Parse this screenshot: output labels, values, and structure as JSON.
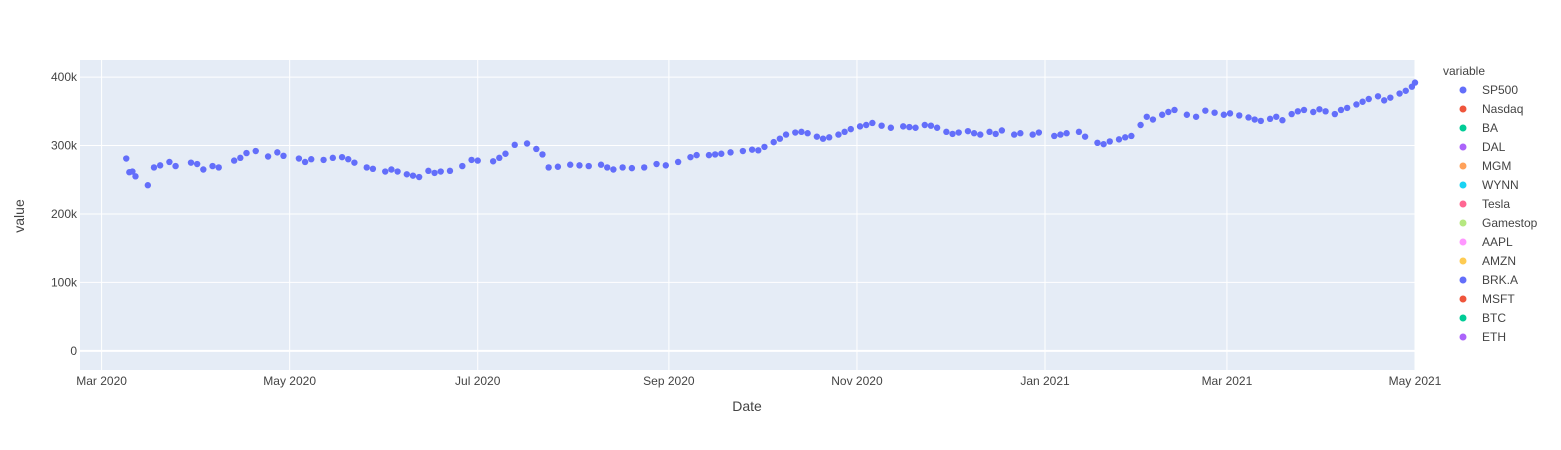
{
  "chart_data": {
    "type": "scatter",
    "xlabel": "Date",
    "ylabel": "value",
    "legend_title": "variable",
    "legend_position": "right",
    "grid": true,
    "xlim": [
      "2020-02-23",
      "2021-05-01"
    ],
    "ylim": [
      -28000,
      425000
    ],
    "x_ticks": [
      {
        "date": "2020-03-01",
        "label": "Mar 2020"
      },
      {
        "date": "2020-05-01",
        "label": "May 2020"
      },
      {
        "date": "2020-07-01",
        "label": "Jul 2020"
      },
      {
        "date": "2020-09-01",
        "label": "Sep 2020"
      },
      {
        "date": "2020-11-01",
        "label": "Nov 2020"
      },
      {
        "date": "2021-01-01",
        "label": "Jan 2021"
      },
      {
        "date": "2021-03-01",
        "label": "Mar 2021"
      },
      {
        "date": "2021-05-01",
        "label": "May 2021"
      }
    ],
    "y_ticks": [
      {
        "value": 0,
        "label": "0"
      },
      {
        "value": 100000,
        "label": "100k"
      },
      {
        "value": 200000,
        "label": "200k"
      },
      {
        "value": 300000,
        "label": "300k"
      },
      {
        "value": 400000,
        "label": "400k"
      }
    ],
    "series": [
      {
        "name": "SP500",
        "color": "#636efa",
        "values": []
      },
      {
        "name": "Nasdaq",
        "color": "#EF553B",
        "values": []
      },
      {
        "name": "BA",
        "color": "#00cc96",
        "values": []
      },
      {
        "name": "DAL",
        "color": "#ab63fa",
        "values": []
      },
      {
        "name": "MGM",
        "color": "#FFA15A",
        "values": []
      },
      {
        "name": "WYNN",
        "color": "#19d3f3",
        "values": []
      },
      {
        "name": "Tesla",
        "color": "#FF6692",
        "values": []
      },
      {
        "name": "Gamestop",
        "color": "#B6E880",
        "values": []
      },
      {
        "name": "AAPL",
        "color": "#FF97FF",
        "values": []
      },
      {
        "name": "AMZN",
        "color": "#FECB52",
        "values": []
      },
      {
        "name": "BRK.A",
        "color": "#636efa",
        "values": [
          [
            "2020-03-09",
            281000
          ],
          [
            "2020-03-10",
            261000
          ],
          [
            "2020-03-11",
            262000
          ],
          [
            "2020-03-12",
            255000
          ],
          [
            "2020-03-16",
            242000
          ],
          [
            "2020-03-18",
            268000
          ],
          [
            "2020-03-20",
            271000
          ],
          [
            "2020-03-23",
            276000
          ],
          [
            "2020-03-25",
            270000
          ],
          [
            "2020-03-30",
            275000
          ],
          [
            "2020-04-01",
            273000
          ],
          [
            "2020-04-03",
            265000
          ],
          [
            "2020-04-06",
            270000
          ],
          [
            "2020-04-08",
            268000
          ],
          [
            "2020-04-13",
            278000
          ],
          [
            "2020-04-15",
            282000
          ],
          [
            "2020-04-17",
            289000
          ],
          [
            "2020-04-20",
            292000
          ],
          [
            "2020-04-24",
            284000
          ],
          [
            "2020-04-27",
            290000
          ],
          [
            "2020-04-29",
            285000
          ],
          [
            "2020-05-04",
            281000
          ],
          [
            "2020-05-06",
            276000
          ],
          [
            "2020-05-08",
            280000
          ],
          [
            "2020-05-12",
            279000
          ],
          [
            "2020-05-15",
            282000
          ],
          [
            "2020-05-18",
            283000
          ],
          [
            "2020-05-20",
            280000
          ],
          [
            "2020-05-22",
            275000
          ],
          [
            "2020-05-26",
            268000
          ],
          [
            "2020-05-28",
            266000
          ],
          [
            "2020-06-01",
            262000
          ],
          [
            "2020-06-03",
            265000
          ],
          [
            "2020-06-05",
            262000
          ],
          [
            "2020-06-08",
            258000
          ],
          [
            "2020-06-10",
            256000
          ],
          [
            "2020-06-12",
            254000
          ],
          [
            "2020-06-15",
            263000
          ],
          [
            "2020-06-17",
            260000
          ],
          [
            "2020-06-19",
            262000
          ],
          [
            "2020-06-22",
            263000
          ],
          [
            "2020-06-26",
            270000
          ],
          [
            "2020-06-29",
            279000
          ],
          [
            "2020-07-01",
            278000
          ],
          [
            "2020-07-06",
            277000
          ],
          [
            "2020-07-08",
            282000
          ],
          [
            "2020-07-10",
            288000
          ],
          [
            "2020-07-13",
            301000
          ],
          [
            "2020-07-17",
            303000
          ],
          [
            "2020-07-20",
            295000
          ],
          [
            "2020-07-22",
            287000
          ],
          [
            "2020-07-24",
            268000
          ],
          [
            "2020-07-27",
            269000
          ],
          [
            "2020-07-31",
            272000
          ],
          [
            "2020-08-03",
            271000
          ],
          [
            "2020-08-06",
            270000
          ],
          [
            "2020-08-10",
            272000
          ],
          [
            "2020-08-12",
            268000
          ],
          [
            "2020-08-14",
            265000
          ],
          [
            "2020-08-17",
            268000
          ],
          [
            "2020-08-20",
            267000
          ],
          [
            "2020-08-24",
            268000
          ],
          [
            "2020-08-28",
            273000
          ],
          [
            "2020-08-31",
            271000
          ],
          [
            "2020-09-04",
            276000
          ],
          [
            "2020-09-08",
            283000
          ],
          [
            "2020-09-10",
            286000
          ],
          [
            "2020-09-14",
            286000
          ],
          [
            "2020-09-16",
            287000
          ],
          [
            "2020-09-18",
            288000
          ],
          [
            "2020-09-21",
            290000
          ],
          [
            "2020-09-25",
            292000
          ],
          [
            "2020-09-28",
            294000
          ],
          [
            "2020-09-30",
            293000
          ],
          [
            "2020-10-02",
            298000
          ],
          [
            "2020-10-05",
            305000
          ],
          [
            "2020-10-07",
            310000
          ],
          [
            "2020-10-09",
            316000
          ],
          [
            "2020-10-12",
            319000
          ],
          [
            "2020-10-14",
            320000
          ],
          [
            "2020-10-16",
            318000
          ],
          [
            "2020-10-19",
            313000
          ],
          [
            "2020-10-21",
            310000
          ],
          [
            "2020-10-23",
            312000
          ],
          [
            "2020-10-26",
            316000
          ],
          [
            "2020-10-28",
            320000
          ],
          [
            "2020-10-30",
            324000
          ],
          [
            "2020-11-02",
            328000
          ],
          [
            "2020-11-04",
            330000
          ],
          [
            "2020-11-06",
            333000
          ],
          [
            "2020-11-09",
            329000
          ],
          [
            "2020-11-12",
            326000
          ],
          [
            "2020-11-16",
            328000
          ],
          [
            "2020-11-18",
            327000
          ],
          [
            "2020-11-20",
            326000
          ],
          [
            "2020-11-23",
            330000
          ],
          [
            "2020-11-25",
            329000
          ],
          [
            "2020-11-27",
            326000
          ],
          [
            "2020-11-30",
            320000
          ],
          [
            "2020-12-02",
            317000
          ],
          [
            "2020-12-04",
            319000
          ],
          [
            "2020-12-07",
            321000
          ],
          [
            "2020-12-09",
            318000
          ],
          [
            "2020-12-11",
            316000
          ],
          [
            "2020-12-14",
            320000
          ],
          [
            "2020-12-16",
            317000
          ],
          [
            "2020-12-18",
            322000
          ],
          [
            "2020-12-22",
            316000
          ],
          [
            "2020-12-24",
            318000
          ],
          [
            "2020-12-28",
            316000
          ],
          [
            "2020-12-30",
            319000
          ],
          [
            "2021-01-04",
            314000
          ],
          [
            "2021-01-06",
            316000
          ],
          [
            "2021-01-08",
            318000
          ],
          [
            "2021-01-12",
            320000
          ],
          [
            "2021-01-14",
            313000
          ],
          [
            "2021-01-18",
            304000
          ],
          [
            "2021-01-20",
            302000
          ],
          [
            "2021-01-22",
            306000
          ],
          [
            "2021-01-25",
            309000
          ],
          [
            "2021-01-27",
            312000
          ],
          [
            "2021-01-29",
            314000
          ],
          [
            "2021-02-01",
            330000
          ],
          [
            "2021-02-03",
            342000
          ],
          [
            "2021-02-05",
            338000
          ],
          [
            "2021-02-08",
            345000
          ],
          [
            "2021-02-10",
            349000
          ],
          [
            "2021-02-12",
            352000
          ],
          [
            "2021-02-16",
            345000
          ],
          [
            "2021-02-19",
            342000
          ],
          [
            "2021-02-22",
            351000
          ],
          [
            "2021-02-25",
            348000
          ],
          [
            "2021-02-28",
            345000
          ],
          [
            "2021-03-02",
            347000
          ],
          [
            "2021-03-05",
            344000
          ],
          [
            "2021-03-08",
            341000
          ],
          [
            "2021-03-10",
            338000
          ],
          [
            "2021-03-12",
            336000
          ],
          [
            "2021-03-15",
            339000
          ],
          [
            "2021-03-17",
            342000
          ],
          [
            "2021-03-19",
            337000
          ],
          [
            "2021-03-22",
            346000
          ],
          [
            "2021-03-24",
            350000
          ],
          [
            "2021-03-26",
            352000
          ],
          [
            "2021-03-29",
            349000
          ],
          [
            "2021-03-31",
            353000
          ],
          [
            "2021-04-02",
            350000
          ],
          [
            "2021-04-05",
            346000
          ],
          [
            "2021-04-07",
            352000
          ],
          [
            "2021-04-09",
            355000
          ],
          [
            "2021-04-12",
            360000
          ],
          [
            "2021-04-14",
            364000
          ],
          [
            "2021-04-16",
            368000
          ],
          [
            "2021-04-19",
            372000
          ],
          [
            "2021-04-21",
            366000
          ],
          [
            "2021-04-23",
            370000
          ],
          [
            "2021-04-26",
            376000
          ],
          [
            "2021-04-28",
            380000
          ],
          [
            "2021-04-30",
            386000
          ],
          [
            "2021-05-01",
            392000
          ]
        ]
      },
      {
        "name": "MSFT",
        "color": "#EF553B",
        "values": []
      },
      {
        "name": "BTC",
        "color": "#00cc96",
        "values": []
      },
      {
        "name": "ETH",
        "color": "#ab63fa",
        "values": []
      }
    ]
  }
}
